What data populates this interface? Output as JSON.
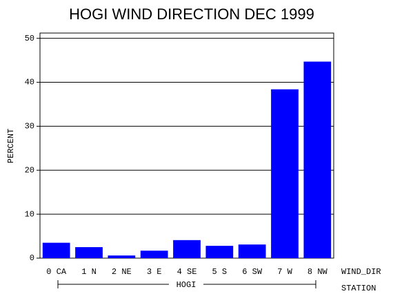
{
  "chart_data": {
    "type": "bar",
    "title": "HOGI WIND DIRECTION DEC 1999",
    "y_label": "PERCENT",
    "x_label": "WIND_DIR",
    "group": "HOGI",
    "group_label": "STATION",
    "categories": [
      "0 CA",
      "1 N",
      "2 NE",
      "3 E",
      "4 SE",
      "5 S",
      "6 SW",
      "7 W",
      "8 NW"
    ],
    "values": [
      3.5,
      2.5,
      0.6,
      1.7,
      4.1,
      2.8,
      3.1,
      38.4,
      44.7
    ],
    "color": "#0000ff",
    "ylim": [
      0,
      51.2
    ],
    "yticks": [
      0,
      10,
      20,
      30,
      40,
      50
    ],
    "grid": true
  }
}
